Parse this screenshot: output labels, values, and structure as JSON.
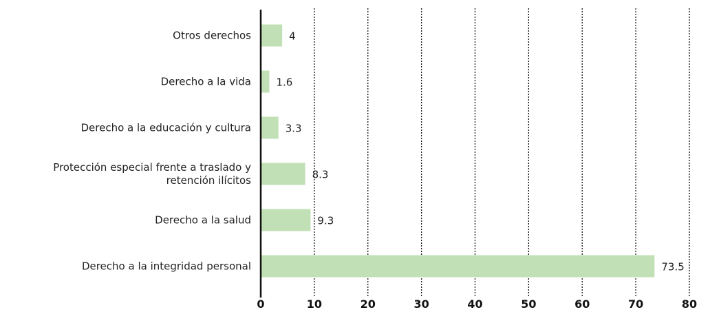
{
  "chart_data": {
    "type": "barh",
    "categories": [
      "Otros derechos",
      "Derecho a la vida",
      "Derecho a la educación y cultura",
      "Protección especial frente a traslado y retención ilícitos",
      "Derecho a la salud",
      "Derecho a la integridad personal"
    ],
    "values": [
      4,
      1.6,
      3.3,
      8.3,
      9.3,
      73.5
    ],
    "color": "#c2e0b6",
    "xlim": [
      0,
      80
    ],
    "xticks": [
      0,
      10,
      20,
      30,
      40,
      50,
      60,
      70,
      80
    ],
    "grid": true
  }
}
